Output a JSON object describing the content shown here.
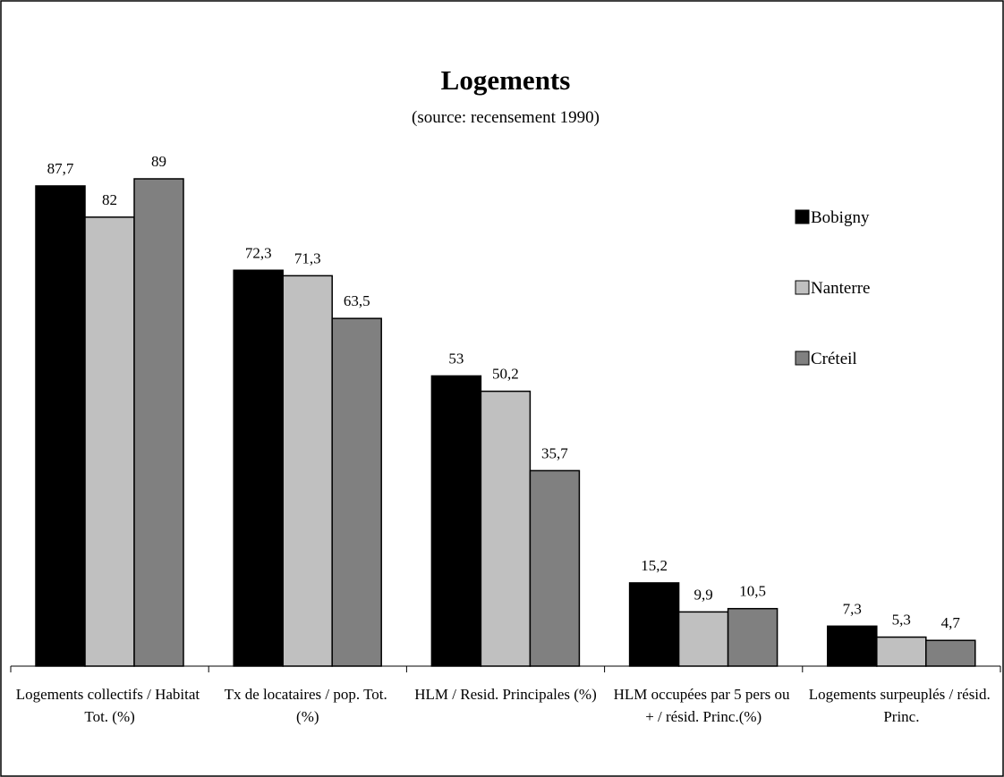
{
  "chart_data": {
    "type": "bar",
    "title": "Logements",
    "subtitle": "(source: recensement 1990)",
    "categories": [
      "Logements collectifs / Habitat Tot. (%)",
      "Tx de locataires / pop. Tot. (%)",
      "HLM / Resid. Principales (%)",
      "HLM occupées par 5 pers ou + / résid. Princ.(%)",
      "Logements surpeuplés / résid. Princ."
    ],
    "series": [
      {
        "name": "Bobigny",
        "color": "#000000",
        "values": [
          87.7,
          72.3,
          53,
          15.2,
          7.3
        ],
        "value_labels": [
          "87,7",
          "72,3",
          "53",
          "15,2",
          "7,3"
        ]
      },
      {
        "name": "Nanterre",
        "color": "#c0c0c0",
        "values": [
          82,
          71.3,
          50.2,
          9.9,
          5.3
        ],
        "value_labels": [
          "82",
          "71,3",
          "50,2",
          "9,9",
          "5,3"
        ]
      },
      {
        "name": "Créteil",
        "color": "#808080",
        "values": [
          89,
          63.5,
          35.7,
          10.5,
          4.7
        ],
        "value_labels": [
          "89",
          "63,5",
          "35,7",
          "10,5",
          "4,7"
        ]
      }
    ],
    "legend": "right"
  }
}
